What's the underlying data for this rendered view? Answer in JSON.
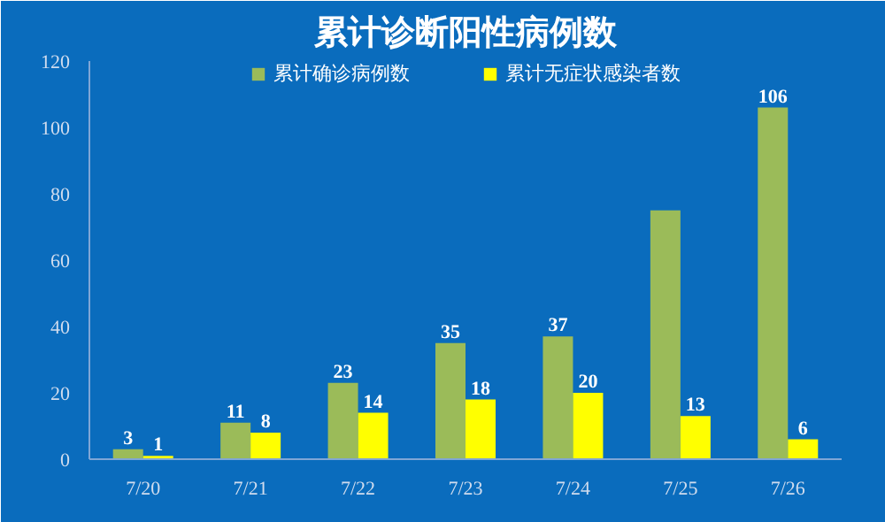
{
  "chart_data": {
    "type": "bar",
    "title": "累计诊断阳性病例数",
    "categories": [
      "7/20",
      "7/21",
      "7/22",
      "7/23",
      "7/24",
      "7/25",
      "7/26"
    ],
    "series": [
      {
        "name": "累计确诊病例数",
        "color": "#9bbb59",
        "values": [
          3,
          11,
          23,
          35,
          37,
          75,
          106
        ],
        "value_labels": [
          "3",
          "11",
          "23",
          "35",
          "37",
          null,
          "106"
        ]
      },
      {
        "name": "累计无症状感染者数",
        "color": "#ffff00",
        "values": [
          1,
          8,
          14,
          18,
          20,
          13,
          6
        ],
        "value_labels": [
          "1",
          "8",
          "14",
          "18",
          "20",
          "13",
          "6"
        ]
      }
    ],
    "ylim": [
      0,
      120
    ],
    "yticks": [
      0,
      20,
      40,
      60,
      80,
      100,
      120
    ],
    "grid": false,
    "legend": "top"
  }
}
